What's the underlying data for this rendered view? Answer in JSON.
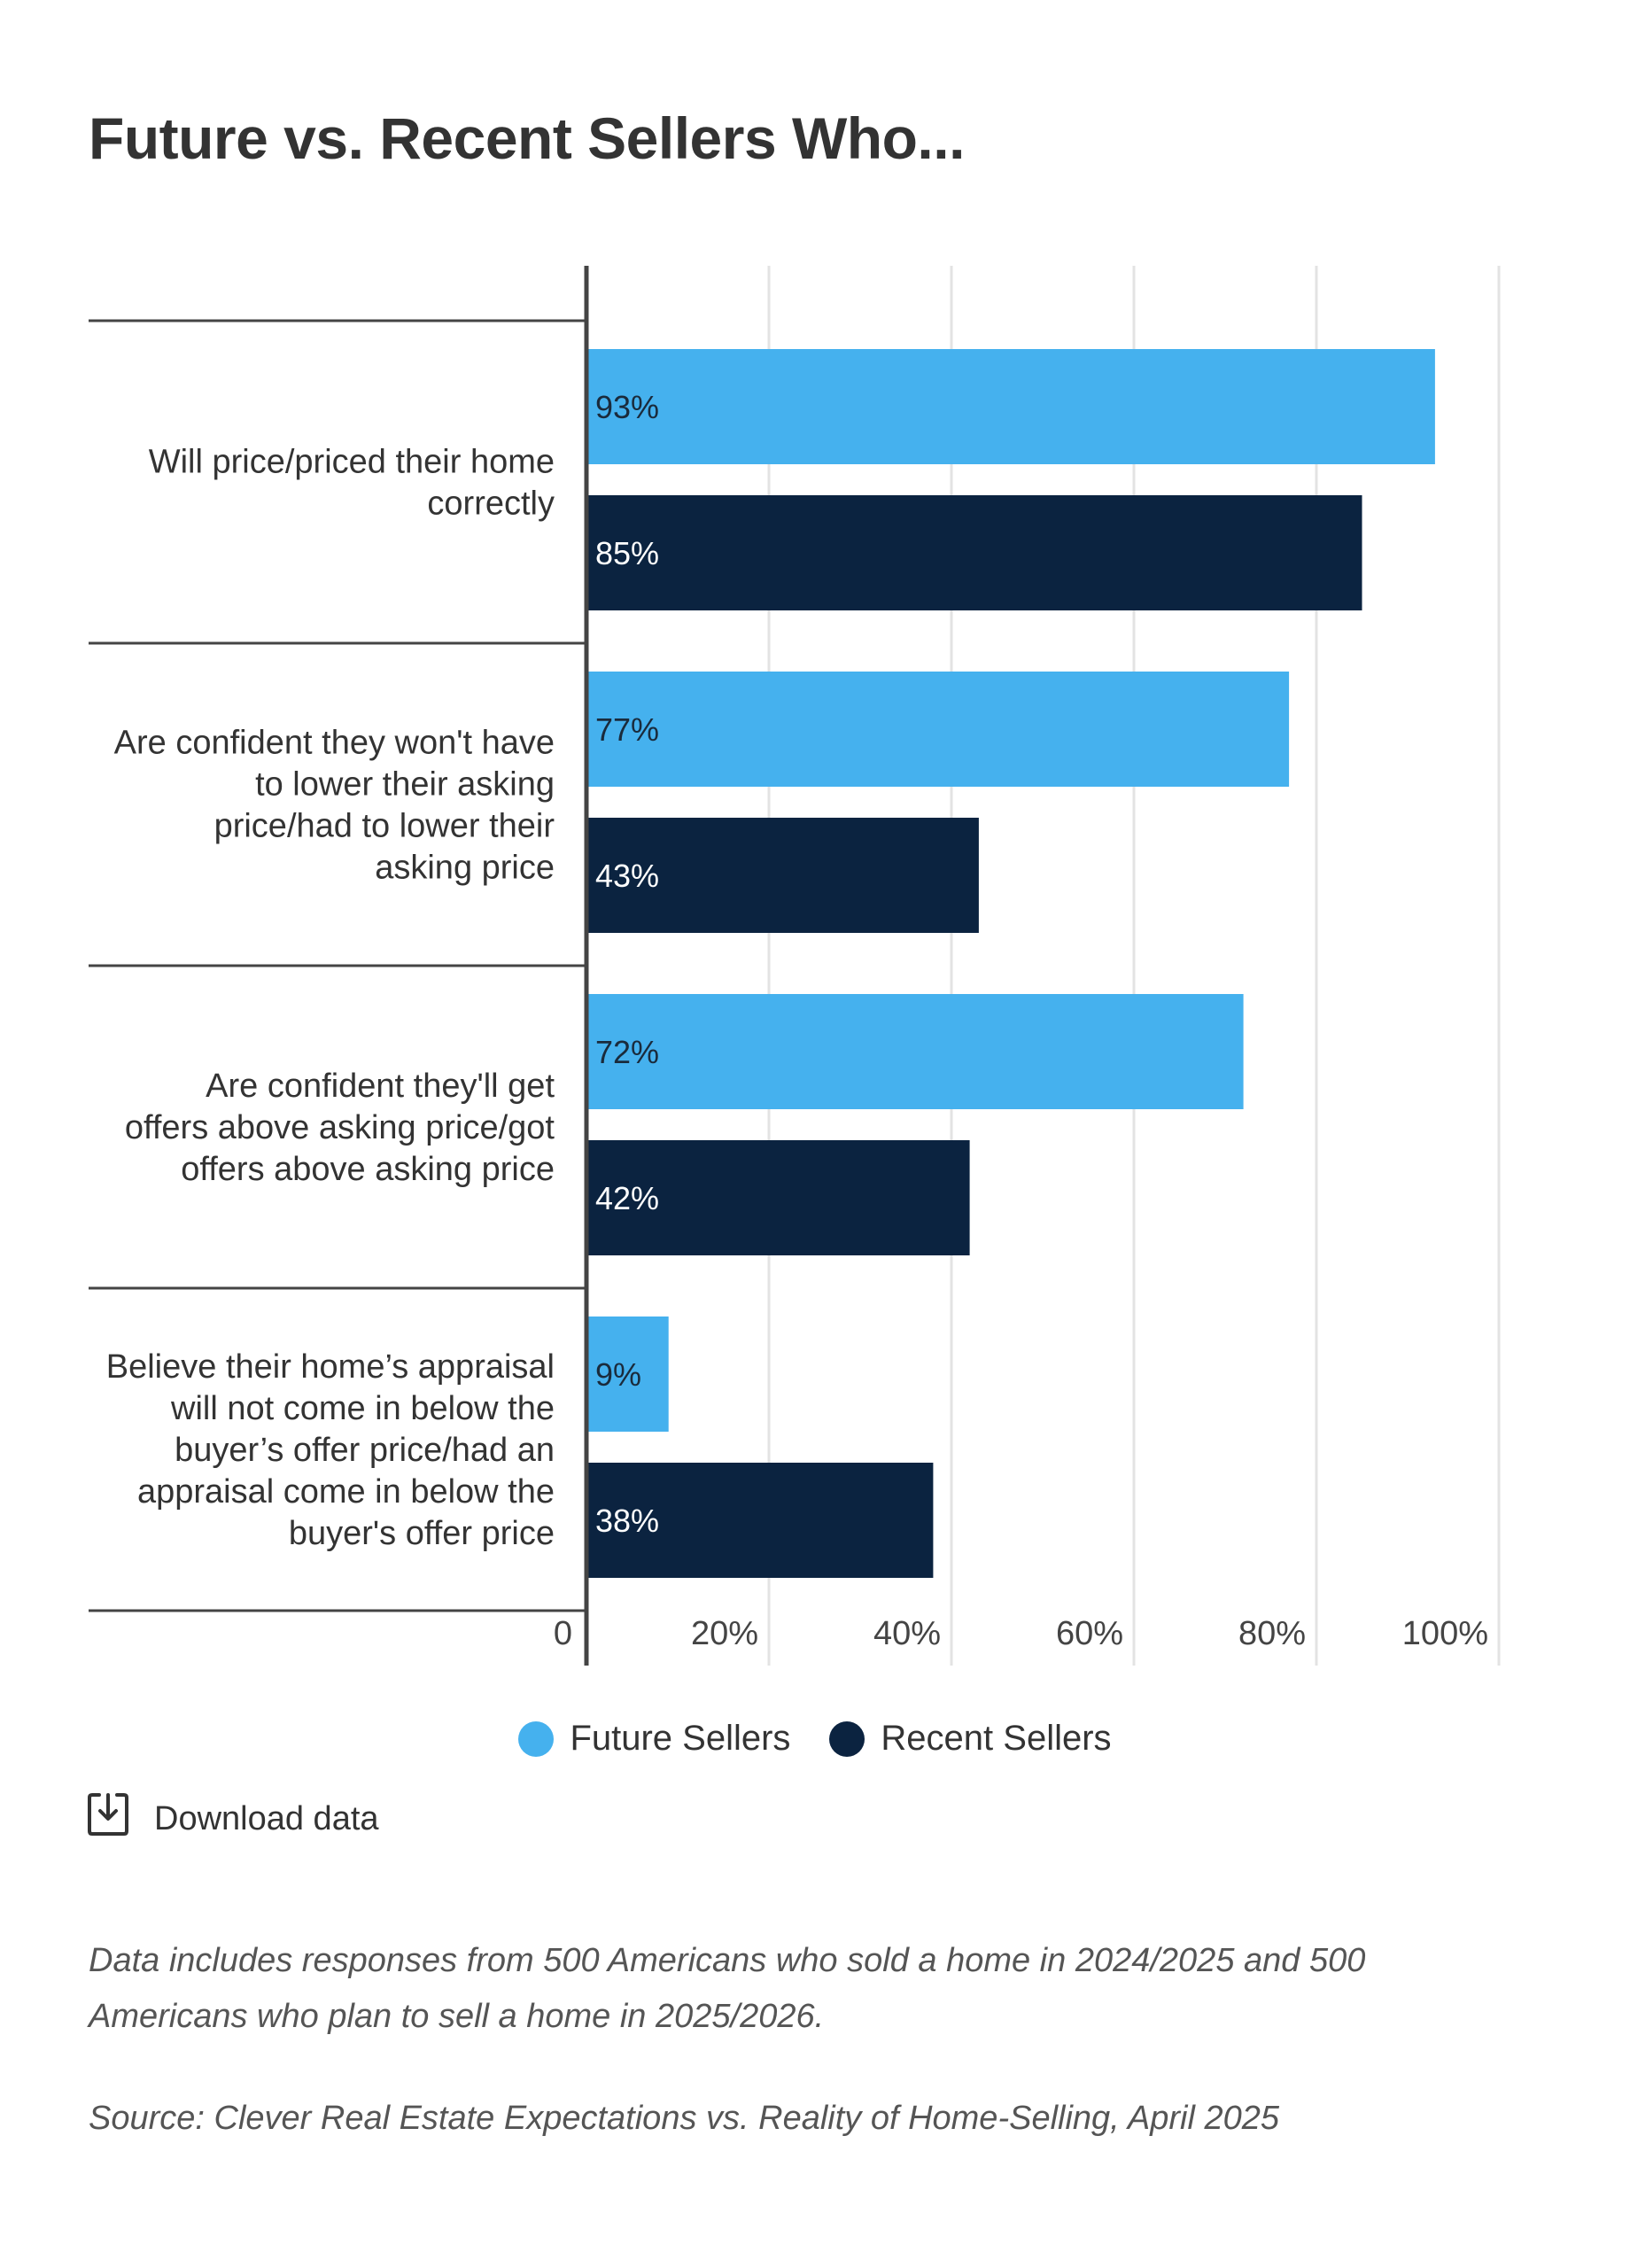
{
  "title": "Future vs. Recent Sellers Who...",
  "chart_data": {
    "type": "bar",
    "orientation": "horizontal",
    "title": "Future vs. Recent Sellers Who...",
    "categories": [
      "Will price/priced their home correctly",
      "Are confident they won't have to lower their asking price/had to lower their asking price",
      "Are confident they'll get offers above asking price/got offers above asking price",
      "Believe their home’s appraisal will not come in below the buyer’s offer price/had an appraisal come in below the buyer's offer price"
    ],
    "category_lines": [
      [
        "Will price/priced their home",
        "correctly"
      ],
      [
        "Are confident they won't have",
        "to lower their asking",
        "price/had to lower their",
        "asking price"
      ],
      [
        "Are confident they'll get",
        "offers above asking price/got",
        "offers above asking price"
      ],
      [
        "Believe their home’s appraisal",
        "will not come in below the",
        "buyer’s offer price/had an",
        "appraisal come in below the",
        "buyer's offer price"
      ]
    ],
    "series": [
      {
        "name": "Future Sellers",
        "color": "#45b1ee",
        "label_color": "#1a2b3c",
        "values": [
          93,
          77,
          72,
          9
        ]
      },
      {
        "name": "Recent Sellers",
        "color": "#0b2340",
        "label_color": "#ffffff",
        "values": [
          85,
          43,
          42,
          38
        ]
      }
    ],
    "value_suffix": "%",
    "xlim": [
      0,
      100
    ],
    "xticks": [
      0,
      20,
      40,
      60,
      80,
      100
    ],
    "xtick_labels": [
      "0",
      "20%",
      "40%",
      "60%",
      "80%",
      "100%"
    ],
    "grid": true,
    "legend_position": "bottom-center"
  },
  "legend": [
    {
      "label": "Future Sellers",
      "color": "#45b1ee"
    },
    {
      "label": "Recent Sellers",
      "color": "#0b2340"
    }
  ],
  "download": {
    "label": "Download data",
    "icon": "download-icon"
  },
  "note": "Data includes responses from 500 Americans who sold a home in 2024/2025 and 500 Americans who plan to sell a home in 2025/2026.",
  "source": "Source: Clever Real Estate Expectations vs. Reality of Home-Selling, April 2025"
}
